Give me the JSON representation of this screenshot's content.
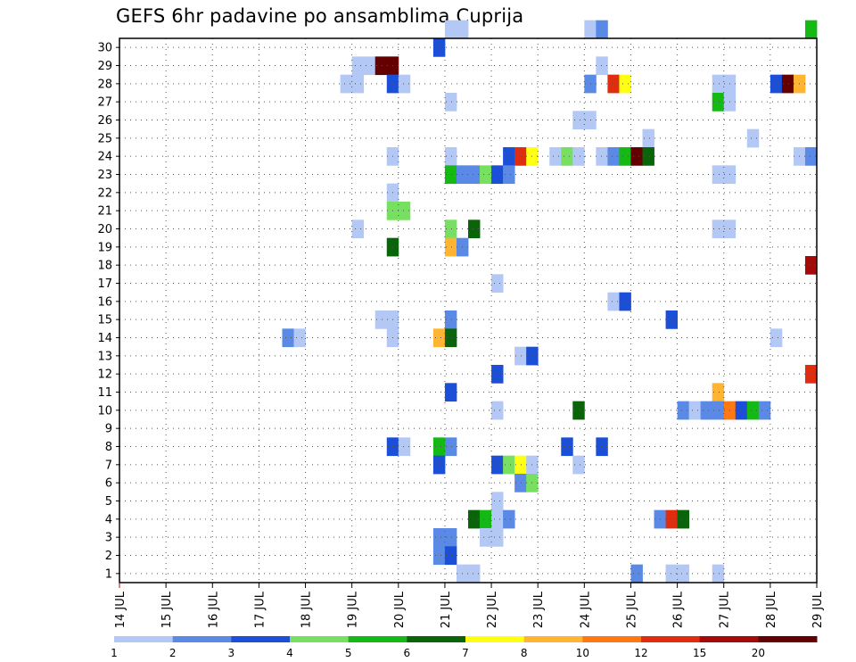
{
  "chart_data": {
    "type": "heatmap",
    "title": "GEFS 6hr padavine po ansamblima Cuprija",
    "x_tick_labels": [
      "14 JUL",
      "15 JUL",
      "16 JUL",
      "17 JUL",
      "18 JUL",
      "19 JUL",
      "20 JUL",
      "21 JUL",
      "22 JUL",
      "23 JUL",
      "24 JUL",
      "25 JUL",
      "26 JUL",
      "27 JUL",
      "28 JUL",
      "29 JUL"
    ],
    "y_tick_labels": [
      "1",
      "2",
      "3",
      "4",
      "5",
      "6",
      "7",
      "8",
      "9",
      "10",
      "11",
      "12",
      "13",
      "14",
      "15",
      "16",
      "17",
      "18",
      "19",
      "20",
      "21",
      "22",
      "23",
      "24",
      "25",
      "26",
      "27",
      "28",
      "29",
      "30"
    ],
    "x_range_steps": [
      0,
      60
    ],
    "y_range_members": [
      0,
      30
    ],
    "grid": true,
    "legend": {
      "position": "bottom",
      "colors": [
        "#b4c8f5",
        "#5a8ae6",
        "#1c4fd8",
        "#78e060",
        "#14b914",
        "#0a640a",
        "#ffff14",
        "#ffb432",
        "#ff7814",
        "#e12d0f",
        "#a50a0a",
        "#640000"
      ],
      "labels": [
        "1",
        "2",
        "3",
        "4",
        "5",
        "6",
        "7",
        "8",
        "10",
        "12",
        "15",
        "20"
      ]
    },
    "cells": [
      [
        28,
        30,
        0
      ],
      [
        29,
        30,
        0
      ],
      [
        40,
        30,
        0
      ],
      [
        41,
        30,
        1
      ],
      [
        59,
        30,
        4
      ],
      [
        27,
        29,
        2
      ],
      [
        20,
        28,
        0
      ],
      [
        21,
        28,
        0
      ],
      [
        22,
        28,
        11
      ],
      [
        23,
        28,
        11
      ],
      [
        41,
        28,
        0
      ],
      [
        19,
        27,
        0
      ],
      [
        20,
        27,
        0
      ],
      [
        23,
        27,
        2
      ],
      [
        24,
        27,
        0
      ],
      [
        40,
        27,
        1
      ],
      [
        42,
        27,
        9
      ],
      [
        43,
        27,
        6
      ],
      [
        51,
        27,
        0
      ],
      [
        52,
        27,
        0
      ],
      [
        56,
        27,
        2
      ],
      [
        57,
        27,
        11
      ],
      [
        58,
        27,
        7
      ],
      [
        28,
        26,
        0
      ],
      [
        51,
        26,
        4
      ],
      [
        52,
        26,
        0
      ],
      [
        39,
        25,
        0
      ],
      [
        40,
        25,
        0
      ],
      [
        45,
        24,
        0
      ],
      [
        54,
        24,
        0
      ],
      [
        23,
        23,
        0
      ],
      [
        28,
        23,
        0
      ],
      [
        33,
        23,
        2
      ],
      [
        34,
        23,
        9
      ],
      [
        35,
        23,
        6
      ],
      [
        37,
        23,
        0
      ],
      [
        38,
        23,
        3
      ],
      [
        39,
        23,
        0
      ],
      [
        41,
        23,
        0
      ],
      [
        42,
        23,
        1
      ],
      [
        43,
        23,
        4
      ],
      [
        44,
        23,
        11
      ],
      [
        45,
        23,
        5
      ],
      [
        58,
        23,
        0
      ],
      [
        59,
        23,
        1
      ],
      [
        28,
        22,
        4
      ],
      [
        29,
        22,
        1
      ],
      [
        30,
        22,
        1
      ],
      [
        31,
        22,
        3
      ],
      [
        32,
        22,
        2
      ],
      [
        33,
        22,
        1
      ],
      [
        51,
        22,
        0
      ],
      [
        52,
        22,
        0
      ],
      [
        23,
        21,
        0
      ],
      [
        23,
        20,
        3
      ],
      [
        24,
        20,
        3
      ],
      [
        20,
        19,
        0
      ],
      [
        28,
        19,
        3
      ],
      [
        30,
        19,
        5
      ],
      [
        51,
        19,
        0
      ],
      [
        52,
        19,
        0
      ],
      [
        23,
        18,
        5
      ],
      [
        28,
        18,
        7
      ],
      [
        29,
        18,
        1
      ],
      [
        59,
        17,
        10
      ],
      [
        32,
        16,
        0
      ],
      [
        42,
        15,
        0
      ],
      [
        43,
        15,
        2
      ],
      [
        22,
        14,
        0
      ],
      [
        23,
        14,
        0
      ],
      [
        28,
        14,
        1
      ],
      [
        47,
        14,
        2
      ],
      [
        14,
        13,
        1
      ],
      [
        15,
        13,
        0
      ],
      [
        23,
        13,
        0
      ],
      [
        27,
        13,
        7
      ],
      [
        28,
        13,
        5
      ],
      [
        56,
        13,
        0
      ],
      [
        34,
        12,
        0
      ],
      [
        35,
        12,
        2
      ],
      [
        32,
        11,
        2
      ],
      [
        59,
        11,
        9
      ],
      [
        28,
        10,
        2
      ],
      [
        51,
        10,
        7
      ],
      [
        32,
        9,
        0
      ],
      [
        39,
        9,
        5
      ],
      [
        48,
        9,
        1
      ],
      [
        49,
        9,
        0
      ],
      [
        50,
        9,
        1
      ],
      [
        51,
        9,
        1
      ],
      [
        52,
        9,
        8
      ],
      [
        53,
        9,
        2
      ],
      [
        54,
        9,
        4
      ],
      [
        55,
        9,
        1
      ],
      [
        23,
        7,
        2
      ],
      [
        24,
        7,
        0
      ],
      [
        27,
        7,
        4
      ],
      [
        28,
        7,
        1
      ],
      [
        38,
        7,
        2
      ],
      [
        41,
        7,
        2
      ],
      [
        27,
        6,
        2
      ],
      [
        32,
        6,
        2
      ],
      [
        33,
        6,
        3
      ],
      [
        34,
        6,
        6
      ],
      [
        35,
        6,
        0
      ],
      [
        39,
        6,
        0
      ],
      [
        34,
        5,
        1
      ],
      [
        35,
        5,
        3
      ],
      [
        32,
        4,
        0
      ],
      [
        30,
        3,
        5
      ],
      [
        31,
        3,
        4
      ],
      [
        32,
        3,
        0
      ],
      [
        33,
        3,
        1
      ],
      [
        46,
        3,
        1
      ],
      [
        47,
        3,
        9
      ],
      [
        48,
        3,
        5
      ],
      [
        27,
        2,
        1
      ],
      [
        28,
        2,
        1
      ],
      [
        31,
        2,
        0
      ],
      [
        32,
        2,
        0
      ],
      [
        27,
        1,
        1
      ],
      [
        28,
        1,
        2
      ],
      [
        29,
        0,
        0
      ],
      [
        30,
        0,
        0
      ],
      [
        44,
        0,
        1
      ],
      [
        47,
        0,
        0
      ],
      [
        48,
        0,
        0
      ],
      [
        51,
        0,
        0
      ]
    ]
  }
}
